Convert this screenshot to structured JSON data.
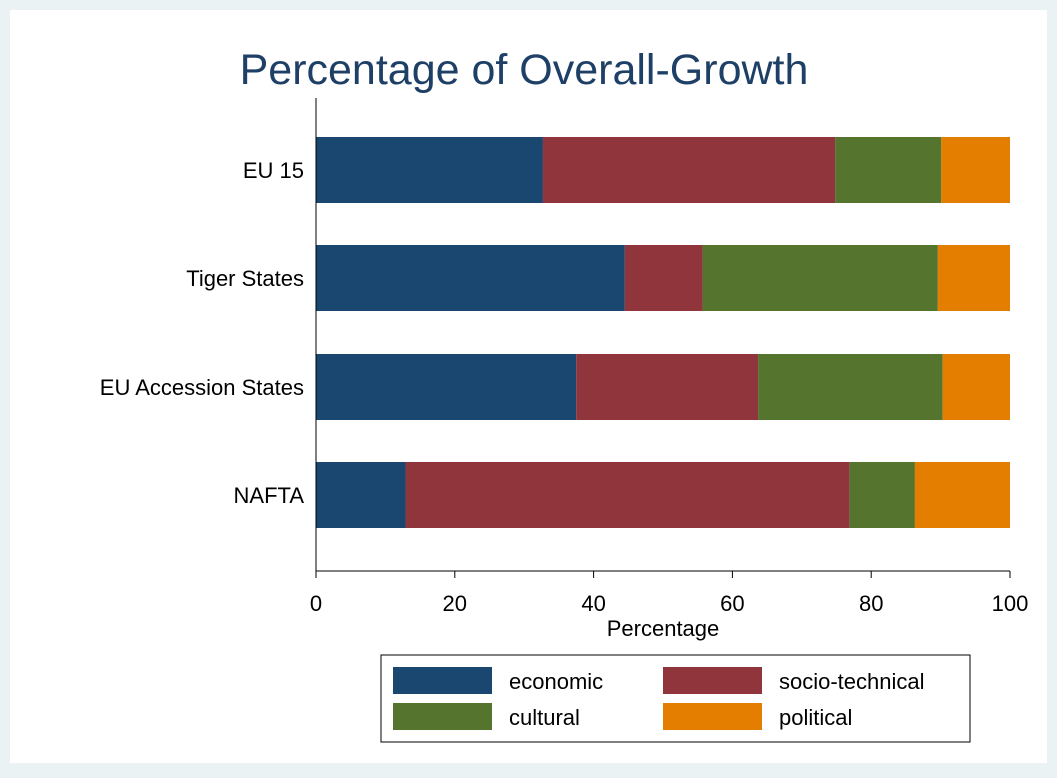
{
  "chart_data": {
    "type": "bar",
    "orientation": "horizontal",
    "stacked": true,
    "title": "Percentage of Overall-Growth",
    "xlabel": "Percentage",
    "ylabel": "",
    "xlim": [
      0,
      100
    ],
    "xticks": [
      0,
      20,
      40,
      60,
      80,
      100
    ],
    "categories": [
      "EU 15",
      "Tiger States",
      "EU Accession States",
      "NAFTA"
    ],
    "series": [
      {
        "name": "economic",
        "color": "#1a476f",
        "values": [
          32.7,
          44.5,
          37.5,
          12.9
        ]
      },
      {
        "name": "socio-technical",
        "color": "#90353b",
        "values": [
          42.1,
          11.2,
          26.2,
          64.0
        ]
      },
      {
        "name": "cultural",
        "color": "#55752f",
        "values": [
          15.3,
          33.9,
          26.6,
          9.4
        ]
      },
      {
        "name": "political",
        "color": "#e37e00",
        "values": [
          9.9,
          10.4,
          9.7,
          13.7
        ]
      }
    ],
    "grid": false,
    "legend_position": "bottom",
    "colors": {
      "background": "#eaf2f3",
      "plot_background": "#ffffff",
      "title": "#1e3f66"
    }
  }
}
